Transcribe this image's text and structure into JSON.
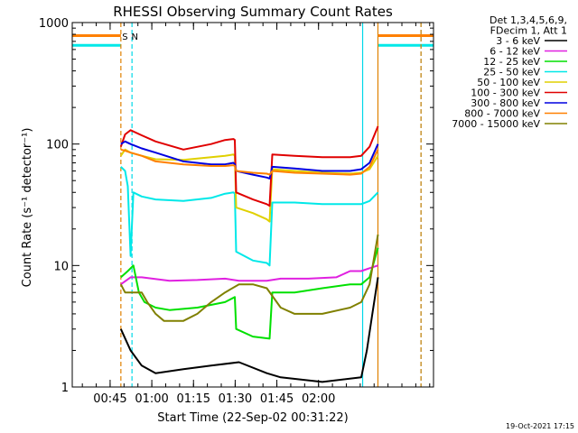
{
  "chart_data": {
    "type": "line",
    "title": "RHESSI Observing Summary Count Rates",
    "xlabel": "Start Time (22-Sep-02 00:31:22)",
    "ylabel": "Count Rate (s⁻¹ detector⁻¹)",
    "yscale": "log",
    "ylim": [
      1,
      1000
    ],
    "xlim_minutes_after_start": [
      0,
      130
    ],
    "x_ticks": [
      {
        "t": 13.63,
        "label": "00:45"
      },
      {
        "t": 28.63,
        "label": "01:00"
      },
      {
        "t": 43.63,
        "label": "01:15"
      },
      {
        "t": 58.63,
        "label": "01:30"
      },
      {
        "t": 73.63,
        "label": "01:45"
      },
      {
        "t": 88.63,
        "label": "02:00"
      }
    ],
    "y_ticks": [
      {
        "v": 1,
        "label": "1"
      },
      {
        "v": 10,
        "label": "10"
      },
      {
        "v": 100,
        "label": "100"
      },
      {
        "v": 1000,
        "label": "1000"
      }
    ],
    "legend_header": [
      "Det 1,3,4,5,6,9,",
      "FDecim 1, Att 1"
    ],
    "legend_position": "right",
    "annotations": [
      {
        "text": "S",
        "t": 19,
        "color": "#e08000"
      },
      {
        "text": "N",
        "t": 22.5,
        "color": "#00d8e8"
      }
    ],
    "markers": [
      {
        "t": 17.5,
        "color": "#e08000",
        "style": "dashed"
      },
      {
        "t": 21.5,
        "color": "#00d8e8",
        "style": "dashed"
      },
      {
        "t": 104.5,
        "color": "#00d8e8",
        "style": "solid"
      },
      {
        "t": 110,
        "color": "#e08000",
        "style": "solid"
      },
      {
        "t": 125.5,
        "color": "#00d8e8",
        "style": "dashed"
      },
      {
        "t": 125.5,
        "color": "#e08000",
        "style": "dashed"
      }
    ],
    "series": [
      {
        "name": "3 - 6 keV",
        "color": "#000000",
        "points": [
          [
            17.5,
            3
          ],
          [
            21,
            2
          ],
          [
            25,
            1.5
          ],
          [
            30,
            1.3
          ],
          [
            40,
            1.4
          ],
          [
            50,
            1.5
          ],
          [
            60,
            1.6
          ],
          [
            70,
            1.3
          ],
          [
            75,
            1.2
          ],
          [
            90,
            1.1
          ],
          [
            104,
            1.2
          ],
          [
            106,
            2
          ],
          [
            108,
            4
          ],
          [
            110,
            8
          ]
        ]
      },
      {
        "name": "6 - 12 keV",
        "color": "#e020e0",
        "points": [
          [
            17.5,
            7
          ],
          [
            21,
            8
          ],
          [
            25,
            8
          ],
          [
            35,
            7.5
          ],
          [
            45,
            7.6
          ],
          [
            55,
            7.8
          ],
          [
            60,
            7.5
          ],
          [
            70,
            7.5
          ],
          [
            75,
            7.8
          ],
          [
            85,
            7.8
          ],
          [
            95,
            8
          ],
          [
            100,
            9
          ],
          [
            104,
            9
          ],
          [
            107,
            9.5
          ],
          [
            110,
            10
          ]
        ]
      },
      {
        "name": "12 - 25 keV",
        "color": "#00e000",
        "points": [
          [
            17.5,
            8
          ],
          [
            20,
            9
          ],
          [
            22,
            10
          ],
          [
            24,
            6
          ],
          [
            26,
            5
          ],
          [
            30,
            4.5
          ],
          [
            35,
            4.3
          ],
          [
            45,
            4.5
          ],
          [
            55,
            5
          ],
          [
            58.5,
            5.5
          ],
          [
            59,
            3
          ],
          [
            65,
            2.6
          ],
          [
            71,
            2.5
          ],
          [
            72,
            6
          ],
          [
            80,
            6
          ],
          [
            90,
            6.5
          ],
          [
            100,
            7
          ],
          [
            104,
            7
          ],
          [
            107,
            8
          ],
          [
            110,
            14
          ]
        ]
      },
      {
        "name": "25 - 50 keV",
        "color": "#00e8e8",
        "points": [
          [
            17.5,
            65
          ],
          [
            19,
            60
          ],
          [
            20,
            45
          ],
          [
            21,
            12
          ],
          [
            22,
            40
          ],
          [
            25,
            37
          ],
          [
            30,
            35
          ],
          [
            40,
            34
          ],
          [
            50,
            36
          ],
          [
            55,
            39
          ],
          [
            58,
            40
          ],
          [
            58.5,
            39
          ],
          [
            59,
            13
          ],
          [
            65,
            11
          ],
          [
            70,
            10.5
          ],
          [
            71,
            10
          ],
          [
            72,
            33
          ],
          [
            80,
            33
          ],
          [
            90,
            32
          ],
          [
            100,
            32
          ],
          [
            104,
            32
          ],
          [
            107,
            34
          ],
          [
            110,
            40
          ]
        ]
      },
      {
        "name": "50 - 100 keV",
        "color": "#e0d000",
        "points": [
          [
            17.5,
            80
          ],
          [
            19,
            90
          ],
          [
            21,
            85
          ],
          [
            25,
            80
          ],
          [
            30,
            75
          ],
          [
            40,
            74
          ],
          [
            50,
            78
          ],
          [
            55,
            80
          ],
          [
            58,
            82
          ],
          [
            58.5,
            80
          ],
          [
            59,
            30
          ],
          [
            65,
            27
          ],
          [
            70,
            24
          ],
          [
            71,
            23
          ],
          [
            72,
            62
          ],
          [
            80,
            60
          ],
          [
            90,
            58
          ],
          [
            100,
            57
          ],
          [
            104,
            58
          ],
          [
            107,
            62
          ],
          [
            110,
            80
          ]
        ]
      },
      {
        "name": "100 - 300 keV",
        "color": "#e00000",
        "points": [
          [
            17.5,
            95
          ],
          [
            19,
            120
          ],
          [
            21,
            130
          ],
          [
            25,
            118
          ],
          [
            30,
            105
          ],
          [
            40,
            90
          ],
          [
            50,
            100
          ],
          [
            55,
            108
          ],
          [
            58,
            110
          ],
          [
            58.5,
            108
          ],
          [
            59,
            40
          ],
          [
            65,
            35
          ],
          [
            70,
            32
          ],
          [
            71,
            31
          ],
          [
            72,
            82
          ],
          [
            80,
            80
          ],
          [
            90,
            78
          ],
          [
            100,
            78
          ],
          [
            104,
            80
          ],
          [
            107,
            95
          ],
          [
            110,
            140
          ]
        ]
      },
      {
        "name": "300 - 800 keV",
        "color": "#0000e0",
        "points": [
          [
            17.5,
            100
          ],
          [
            19,
            105
          ],
          [
            21,
            100
          ],
          [
            25,
            92
          ],
          [
            30,
            85
          ],
          [
            40,
            72
          ],
          [
            50,
            68
          ],
          [
            55,
            68
          ],
          [
            58,
            70
          ],
          [
            58.5,
            68
          ],
          [
            59,
            60
          ],
          [
            65,
            56
          ],
          [
            70,
            53
          ],
          [
            71,
            52
          ],
          [
            72,
            65
          ],
          [
            80,
            63
          ],
          [
            90,
            60
          ],
          [
            100,
            60
          ],
          [
            104,
            62
          ],
          [
            107,
            70
          ],
          [
            110,
            100
          ]
        ]
      },
      {
        "name": "800 - 7000 keV",
        "color": "#ff8000",
        "points": [
          [
            17.5,
            90
          ],
          [
            19,
            88
          ],
          [
            21,
            85
          ],
          [
            25,
            80
          ],
          [
            30,
            72
          ],
          [
            40,
            68
          ],
          [
            50,
            66
          ],
          [
            55,
            66
          ],
          [
            58,
            67
          ],
          [
            58.5,
            66
          ],
          [
            59,
            60
          ],
          [
            65,
            58
          ],
          [
            70,
            57
          ],
          [
            71,
            56
          ],
          [
            72,
            60
          ],
          [
            80,
            58
          ],
          [
            90,
            57
          ],
          [
            100,
            56
          ],
          [
            104,
            57
          ],
          [
            107,
            65
          ],
          [
            110,
            90
          ]
        ]
      },
      {
        "name": "7000 - 15000 keV",
        "color": "#808000",
        "points": [
          [
            17.5,
            7
          ],
          [
            19,
            6
          ],
          [
            21,
            6
          ],
          [
            25,
            6
          ],
          [
            27,
            5
          ],
          [
            30,
            4
          ],
          [
            33,
            3.5
          ],
          [
            40,
            3.5
          ],
          [
            45,
            4
          ],
          [
            50,
            5
          ],
          [
            55,
            6
          ],
          [
            60,
            7
          ],
          [
            65,
            7
          ],
          [
            70,
            6.5
          ],
          [
            75,
            4.5
          ],
          [
            80,
            4
          ],
          [
            90,
            4
          ],
          [
            100,
            4.5
          ],
          [
            104,
            5
          ],
          [
            107,
            7
          ],
          [
            110,
            18
          ]
        ]
      }
    ],
    "pre_post_levels": [
      {
        "series": "800 - 7000 keV",
        "value": 780
      },
      {
        "series": "25 - 50 keV",
        "value": 650
      }
    ]
  },
  "footer": {
    "timestamp": "19-Oct-2021 17:15"
  }
}
